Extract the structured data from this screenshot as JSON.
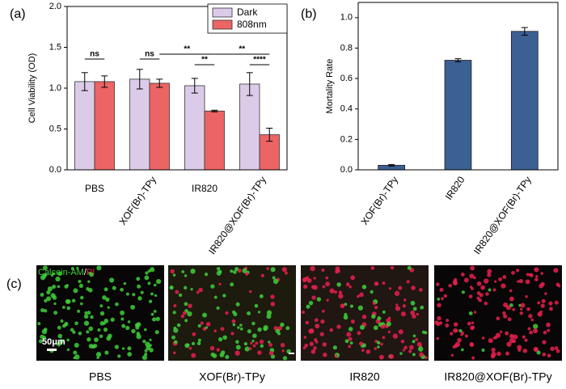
{
  "chart_data": [
    {
      "type": "bar",
      "panel_label": "(a)",
      "y_label": "Cell Viability (OD)",
      "categories": [
        "PBS",
        "XOF(Br)-TPy",
        "IR820",
        "IR820@XOF(Br)-TPy"
      ],
      "series": [
        {
          "name": "Dark",
          "color": "#dccbe8",
          "values": [
            1.08,
            1.11,
            1.03,
            1.05
          ],
          "errors": [
            0.11,
            0.12,
            0.09,
            0.14
          ]
        },
        {
          "name": "808nm",
          "color": "#ec6464",
          "values": [
            1.08,
            1.06,
            0.72,
            0.43
          ],
          "errors": [
            0.07,
            0.05,
            0.01,
            0.08
          ]
        }
      ],
      "ylim": [
        0,
        2.0
      ],
      "yticks": [
        {
          "value": 0,
          "label": "0.0"
        },
        0.5,
        {
          "value": 1,
          "label": "1.0"
        },
        1.5,
        {
          "value": 2,
          "label": "2.0"
        }
      ],
      "legend": "upper right",
      "annotations": [
        "ns",
        "ns",
        "**",
        "**",
        "**",
        "****"
      ]
    },
    {
      "type": "bar",
      "panel_label": "(b)",
      "y_label": "Mortality Rate",
      "categories": [
        "XOF(Br)-TPy",
        "IR820",
        "IR820@XOF(Br)-TPy"
      ],
      "values": [
        0.03,
        0.72,
        0.91
      ],
      "errors": [
        0.005,
        0.01,
        0.025
      ],
      "color": "#3c5f94",
      "ylim": [
        0,
        1.1
      ],
      "yticks": [
        {
          "value": 0,
          "label": "0.0"
        },
        0.2,
        0.4,
        0.6,
        0.8,
        {
          "value": 1,
          "label": "1.0"
        }
      ]
    }
  ],
  "panel_c": {
    "label": "(c)",
    "stain": [
      "Calcein-AM",
      "/",
      "PI"
    ],
    "scale_bar": "50μm",
    "captions": [
      "PBS",
      "XOF(Br)-TPy",
      "IR820",
      "IR820@XOF(Br)-TPy"
    ]
  }
}
